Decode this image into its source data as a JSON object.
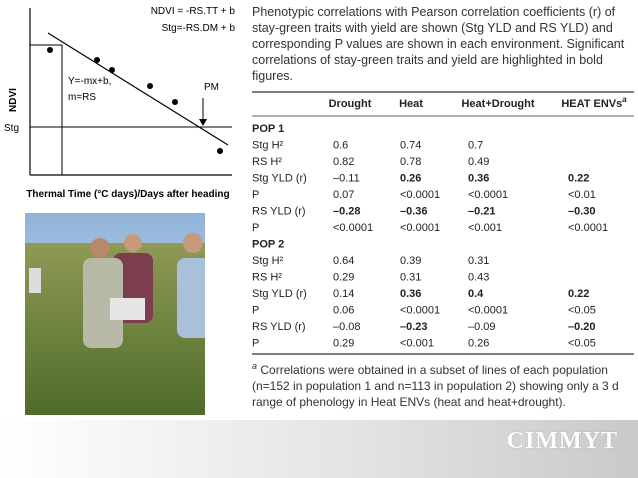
{
  "diagram": {
    "equation_ndvi": "NDVI = -RS.TT + b",
    "equation_stg": "Stg=-RS.DM + b",
    "equation_line": "Y=-mx+b,",
    "equation_slope": "m=RS",
    "pm_label": "PM",
    "stg_label": "Stg",
    "y_label": "NDVI",
    "x_label": "Thermal Time (°C days)/Days after heading"
  },
  "caption": "Phenotypic correlations with Pearson correlation coefficients (r) of stay-green traits with yield are shown (Stg YLD and RS YLD) and corresponding P values are shown in each environment. Significant correlations of stay-green traits and yield are highlighted in bold figures.",
  "table": {
    "header": [
      "Drought",
      "Heat",
      "Heat+Drought",
      "HEAT ENVs"
    ],
    "header_mark": "a",
    "sections": [
      {
        "title": "POP 1",
        "rows": [
          {
            "label": "Stg H²",
            "cells": [
              "0.6",
              "0.74",
              "0.7",
              null
            ],
            "bold": [
              false,
              false,
              false,
              false
            ]
          },
          {
            "label": "RS H²",
            "cells": [
              "0.82",
              "0.78",
              "0.49",
              null
            ],
            "bold": [
              false,
              false,
              false,
              false
            ]
          },
          {
            "label": "Stg YLD (r)",
            "cells": [
              "–0.11",
              "0.26",
              "0.36",
              "0.22"
            ],
            "bold": [
              false,
              true,
              true,
              true
            ]
          },
          {
            "label": "P",
            "cells": [
              "0.07",
              "<0.0001",
              "<0.0001",
              "<0.01"
            ],
            "bold": [
              false,
              false,
              false,
              false
            ]
          },
          {
            "label": "RS YLD (r)",
            "cells": [
              "–0.28",
              "–0.36",
              "–0.21",
              "–0.30"
            ],
            "bold": [
              true,
              true,
              true,
              true
            ]
          },
          {
            "label": "P",
            "cells": [
              "<0.0001",
              "<0.0001",
              "<0.001",
              "<0.0001"
            ],
            "bold": [
              false,
              false,
              false,
              false
            ]
          }
        ]
      },
      {
        "title": "POP 2",
        "rows": [
          {
            "label": "Stg H²",
            "cells": [
              "0.64",
              "0.39",
              "0.31",
              null
            ],
            "bold": [
              false,
              false,
              false,
              false
            ]
          },
          {
            "label": "RS H²",
            "cells": [
              "0.29",
              "0.31",
              "0.43",
              null
            ],
            "bold": [
              false,
              false,
              false,
              false
            ]
          },
          {
            "label": "Stg YLD (r)",
            "cells": [
              "0.14",
              "0.36",
              "0.4",
              "0.22"
            ],
            "bold": [
              false,
              true,
              true,
              true
            ]
          },
          {
            "label": "P",
            "cells": [
              "0.06",
              "<0.0001",
              "<0.0001",
              "<0.05"
            ],
            "bold": [
              false,
              false,
              false,
              false
            ]
          },
          {
            "label": "RS YLD (r)",
            "cells": [
              "–0.08",
              "–0.23",
              "–0.09",
              "–0.20"
            ],
            "bold": [
              false,
              true,
              false,
              true
            ]
          },
          {
            "label": "P",
            "cells": [
              "0.29",
              "<0.001",
              "0.26",
              "<0.05"
            ],
            "bold": [
              false,
              false,
              false,
              false
            ]
          }
        ]
      }
    ]
  },
  "footnote": {
    "mark": "a",
    "text": "Correlations were obtained in a subset of lines of each population (n=152 in population 1 and n=113 in population 2) showing only a 3 d range of phenology in Heat ENVs (heat and heat+drought)."
  },
  "logo": "CIMMYT"
}
